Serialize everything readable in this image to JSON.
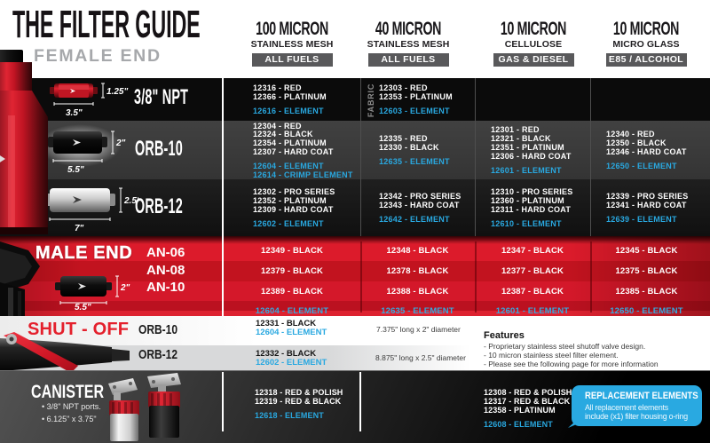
{
  "header": {
    "title": "THE FILTER GUIDE",
    "subtitle": "FEMALE END",
    "columns": [
      {
        "micron": "100 MICRON",
        "media": "STAINLESS MESH",
        "fuel": "ALL FUELS"
      },
      {
        "micron": "40 MICRON",
        "media": "STAINLESS MESH",
        "fuel": "ALL FUELS"
      },
      {
        "micron": "10 MICRON",
        "media": "CELLULOSE",
        "fuel": "GAS & DIESEL"
      },
      {
        "micron": "10 MICRON",
        "media": "MICRO GLASS",
        "fuel": "E85 / ALCOHOL"
      }
    ]
  },
  "female": {
    "rows": [
      {
        "label": "3/8\" NPT",
        "dim_height": "1.25\"",
        "dim_length": "3.5\"",
        "fabric_note": "FABRIC",
        "cells": [
          {
            "parts": [
              "12316 - RED",
              "12366 - PLATINUM"
            ],
            "elements": [
              "12616 - ELEMENT"
            ]
          },
          {
            "parts": [
              "12303 - RED",
              "12353 - PLATINUM"
            ],
            "elements": [
              "12603 - ELEMENT"
            ]
          },
          {
            "parts": [],
            "elements": []
          },
          {
            "parts": [],
            "elements": []
          }
        ]
      },
      {
        "label": "ORB-10",
        "dim_height": "2\"",
        "dim_length": "5.5\"",
        "cells": [
          {
            "parts": [
              "12304 - RED",
              "12324 - BLACK",
              "12354 - PLATINUM",
              "12307 - HARD COAT"
            ],
            "elements": [
              "12604 - ELEMENT",
              "12614 - CRIMP ELEMENT"
            ]
          },
          {
            "parts": [
              "12335 - RED",
              "12330 - BLACK"
            ],
            "elements": [
              "12635 - ELEMENT"
            ]
          },
          {
            "parts": [
              "12301 - RED",
              "12321 - BLACK",
              "12351 - PLATINUM",
              "12306 - HARD COAT"
            ],
            "elements": [
              "12601 - ELEMENT"
            ]
          },
          {
            "parts": [
              "12340 - RED",
              "12350 - BLACK",
              "12346 - HARD COAT"
            ],
            "elements": [
              "12650 - ELEMENT"
            ]
          }
        ]
      },
      {
        "label": "ORB-12",
        "dim_height": "2.5\"",
        "dim_length": "7\"",
        "cells": [
          {
            "parts": [
              "12302 - PRO SERIES",
              "12352 - PLATINUM",
              "12309 - HARD COAT"
            ],
            "elements": [
              "12602 - ELEMENT"
            ]
          },
          {
            "parts": [
              "12342 - PRO SERIES",
              "12343 - HARD COAT"
            ],
            "elements": [
              "12642 - ELEMENT"
            ]
          },
          {
            "parts": [
              "12310 - PRO SERIES",
              "12360 - PLATINUM",
              "12311 - HARD COAT"
            ],
            "elements": [
              "12610 - ELEMENT"
            ]
          },
          {
            "parts": [
              "12339 - PRO SERIES",
              "12341 - HARD COAT"
            ],
            "elements": [
              "12639 - ELEMENT"
            ]
          }
        ]
      }
    ]
  },
  "male": {
    "heading": "MALE END",
    "dim_height": "2\"",
    "dim_length": "5.5\"",
    "rows": [
      {
        "label": "AN-06",
        "cells": [
          "12349 - BLACK",
          "12348 - BLACK",
          "12347 - BLACK",
          "12345 - BLACK"
        ]
      },
      {
        "label": "AN-08",
        "cells": [
          "12379 - BLACK",
          "12378 - BLACK",
          "12377 - BLACK",
          "12375 - BLACK"
        ]
      },
      {
        "label": "AN-10",
        "cells": [
          "12389 - BLACK",
          "12388 - BLACK",
          "12387 - BLACK",
          "12385 - BLACK"
        ]
      }
    ],
    "elements": [
      "12604 - ELEMENT",
      "12635 - ELEMENT",
      "12601 - ELEMENT",
      "12650 - ELEMENT"
    ]
  },
  "shutoff": {
    "heading": "SHUT - OFF",
    "rows": [
      {
        "label": "ORB-10",
        "part": "12331 - BLACK",
        "element": "12604 - ELEMENT",
        "desc": "7.375\" long x 2\" diameter"
      },
      {
        "label": "ORB-12",
        "part": "12332 - BLACK",
        "element": "12602 - ELEMENT",
        "desc": "8.875\" long x 2.5\" diameter"
      }
    ],
    "features": {
      "title": "Features",
      "items": [
        "- Proprietary stainless steel shutoff valve design.",
        "- 10 micron stainless steel filter element.",
        "- Please see the following page for more information"
      ]
    }
  },
  "canister": {
    "heading": "CANISTER",
    "bullets": [
      "• 3/8\" NPT ports.",
      "• 6.125\" x 3.75\""
    ],
    "cells": [
      {
        "parts": [
          "12318 - RED & POLISH",
          "12319 - RED & BLACK"
        ],
        "elements": [
          "12618 - ELEMENT"
        ]
      },
      {
        "parts": [
          "12308 - RED & POLISH",
          "12317 - RED & BLACK",
          "12358 - PLATINUM"
        ],
        "elements": [
          "12608 - ELEMENT"
        ]
      }
    ],
    "replacement": {
      "title": "REPLACEMENT ELEMENTS",
      "line1": "All replacement elements",
      "line2": "include (x1) filter housing o-ring"
    }
  },
  "colors": {
    "element_blue": "#29a8e0",
    "brand_red": "#d6182a",
    "badge_gray": "#59595b"
  }
}
